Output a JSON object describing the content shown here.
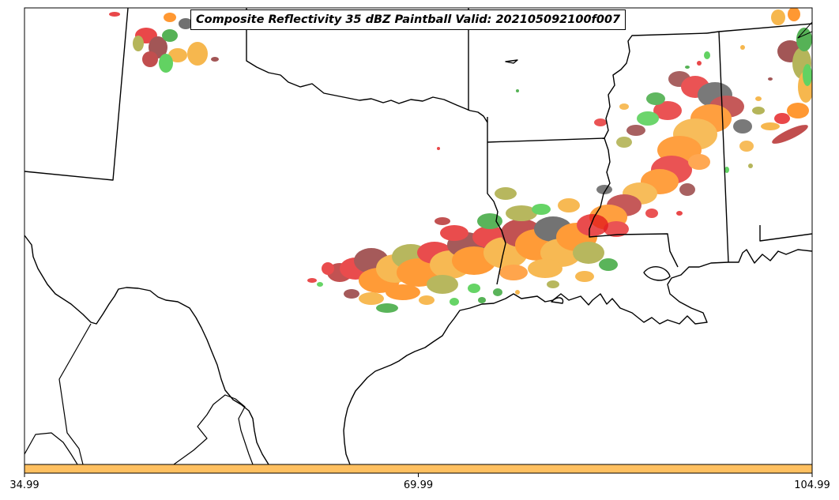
{
  "title": "Composite Reflectivity 35 dBZ Paintball Valid: 202105092100f007",
  "colorbar": {
    "ticks": [
      "34.99",
      "69.99",
      "104.99"
    ],
    "fill_color": "#FFC060"
  },
  "colors": {
    "paintball_palette": [
      "#E41A1C",
      "#FF7F00",
      "#F5A623",
      "#2CA02C",
      "#3CC83C",
      "#8C2D2D",
      "#A3A332",
      "#4D4D4D",
      "#B22222",
      "#FF8C1A"
    ]
  }
}
